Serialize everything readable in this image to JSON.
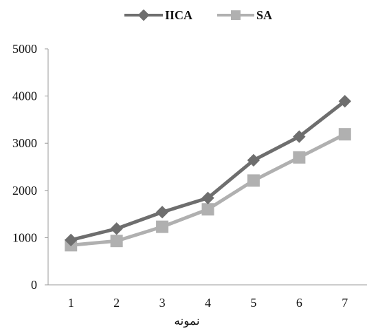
{
  "chart_data": {
    "type": "line",
    "categories": [
      "1",
      "2",
      "3",
      "4",
      "5",
      "6",
      "7"
    ],
    "series": [
      {
        "name": "IICA",
        "values": [
          950,
          1190,
          1540,
          1840,
          2640,
          3140,
          3890
        ],
        "color": "#6e6e6e",
        "marker": "diamond"
      },
      {
        "name": "SA",
        "values": [
          840,
          930,
          1230,
          1600,
          2210,
          2700,
          3190
        ],
        "color": "#b0b0b0",
        "marker": "square"
      }
    ],
    "xlabel": "نمونه",
    "ylabel": "",
    "ylim": [
      0,
      5000
    ],
    "yticks": [
      "0",
      "1000",
      "2000",
      "3000",
      "4000",
      "5000"
    ],
    "grid": false,
    "legend_position": "top-center"
  }
}
